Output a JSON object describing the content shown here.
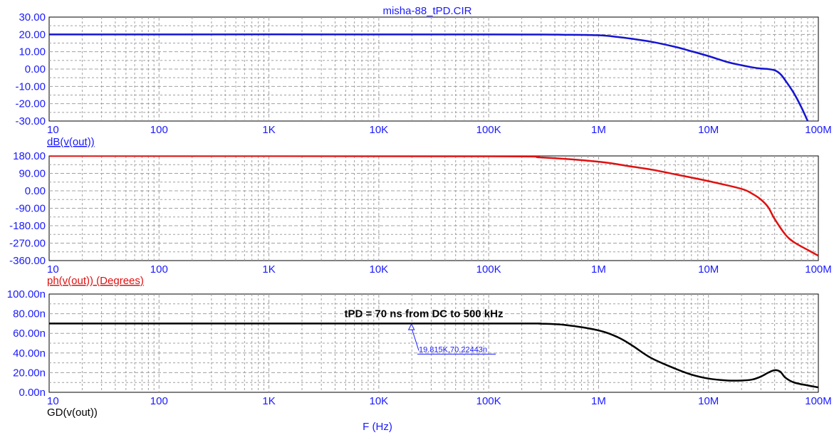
{
  "window": {
    "title": "misha-88_tPD.CIR"
  },
  "colors": {
    "magnitude": "#1414d2",
    "phase": "#e01010",
    "group_delay": "#000000",
    "axis_text": "#1a1aff",
    "grid": "#a0a0a0"
  },
  "x_axis": {
    "label": "F (Hz)",
    "scale": "log",
    "range": [
      10,
      100000000
    ],
    "tick_labels": [
      "10",
      "100",
      "1K",
      "10K",
      "100K",
      "1M",
      "10M",
      "100M"
    ]
  },
  "chart_data": [
    {
      "type": "line",
      "title": "misha-88_tPD.CIR",
      "xlabel": "",
      "ylabel": "dB(v(out))",
      "xscale": "log",
      "xlim": [
        10,
        100000000
      ],
      "ylim": [
        -30,
        30
      ],
      "grid": true,
      "y_tick_labels": [
        "30.00",
        "20.00",
        "10.00",
        "0.00",
        "-10.00",
        "-20.00",
        "-30.00"
      ],
      "series": [
        {
          "name": "dB(v(out))",
          "x": [
            10,
            100000,
            500000,
            1000000,
            1500000,
            2000000,
            3000000,
            5000000,
            7000000,
            10000000,
            15000000,
            20000000,
            25000000,
            30000000,
            35000000,
            40000000,
            45000000,
            50000000,
            60000000,
            70000000,
            80000000
          ],
          "y": [
            20,
            20,
            19.8,
            19.5,
            18.5,
            17.5,
            15.8,
            12.8,
            10.3,
            7.5,
            4.0,
            2.2,
            1.0,
            0.3,
            0.0,
            -0.7,
            -2.8,
            -6.5,
            -14,
            -22,
            -30
          ]
        }
      ]
    },
    {
      "type": "line",
      "title": "",
      "xlabel": "",
      "ylabel": "ph(v(out)) (Degrees)",
      "xscale": "log",
      "xlim": [
        10,
        100000000
      ],
      "ylim": [
        -360,
        180
      ],
      "grid": true,
      "y_tick_labels": [
        "180.00",
        "90.00",
        "0.00",
        "-90.00",
        "-180.00",
        "-270.00",
        "-360.00"
      ],
      "series": [
        {
          "name": "ph(v(out)) (Degrees)",
          "x": [
            10,
            100000,
            300000,
            1000000,
            2000000,
            3000000,
            5000000,
            10000000,
            20000000,
            25000000,
            30000000,
            35000000,
            40000000,
            50000000,
            60000000,
            80000000,
            100000000
          ],
          "y": [
            180,
            178,
            172,
            150,
            125,
            110,
            85,
            50,
            10,
            -15,
            -45,
            -85,
            -145,
            -225,
            -265,
            -305,
            -335
          ]
        }
      ]
    },
    {
      "type": "line",
      "title": "",
      "xlabel": "F (Hz)",
      "ylabel": "GD(v(out))",
      "xscale": "log",
      "xlim": [
        10,
        100000000
      ],
      "ylim": [
        0,
        100
      ],
      "y_unit": "ns",
      "grid": true,
      "y_tick_labels": [
        "100.00n",
        "80.00n",
        "60.00n",
        "40.00n",
        "20.00n",
        "0.00n"
      ],
      "series": [
        {
          "name": "GD(v(out))",
          "x": [
            10,
            100000,
            300000,
            500000,
            1000000,
            1500000,
            2000000,
            3000000,
            5000000,
            7000000,
            10000000,
            15000000,
            20000000,
            25000000,
            30000000,
            35000000,
            40000000,
            45000000,
            50000000,
            60000000,
            80000000,
            100000000
          ],
          "y": [
            70,
            70,
            69.8,
            68.5,
            63,
            56,
            48,
            35,
            24,
            18,
            14,
            12,
            12,
            13,
            16,
            20,
            22.5,
            21,
            15,
            10,
            7,
            5
          ]
        }
      ],
      "annotations": [
        {
          "text": "tPD = 70 ns from DC to 500 kHz",
          "x": 6000000,
          "y": 80
        },
        {
          "text": "19.815K,70.22443n",
          "x": 19815,
          "y": 70.22443
        }
      ]
    }
  ]
}
